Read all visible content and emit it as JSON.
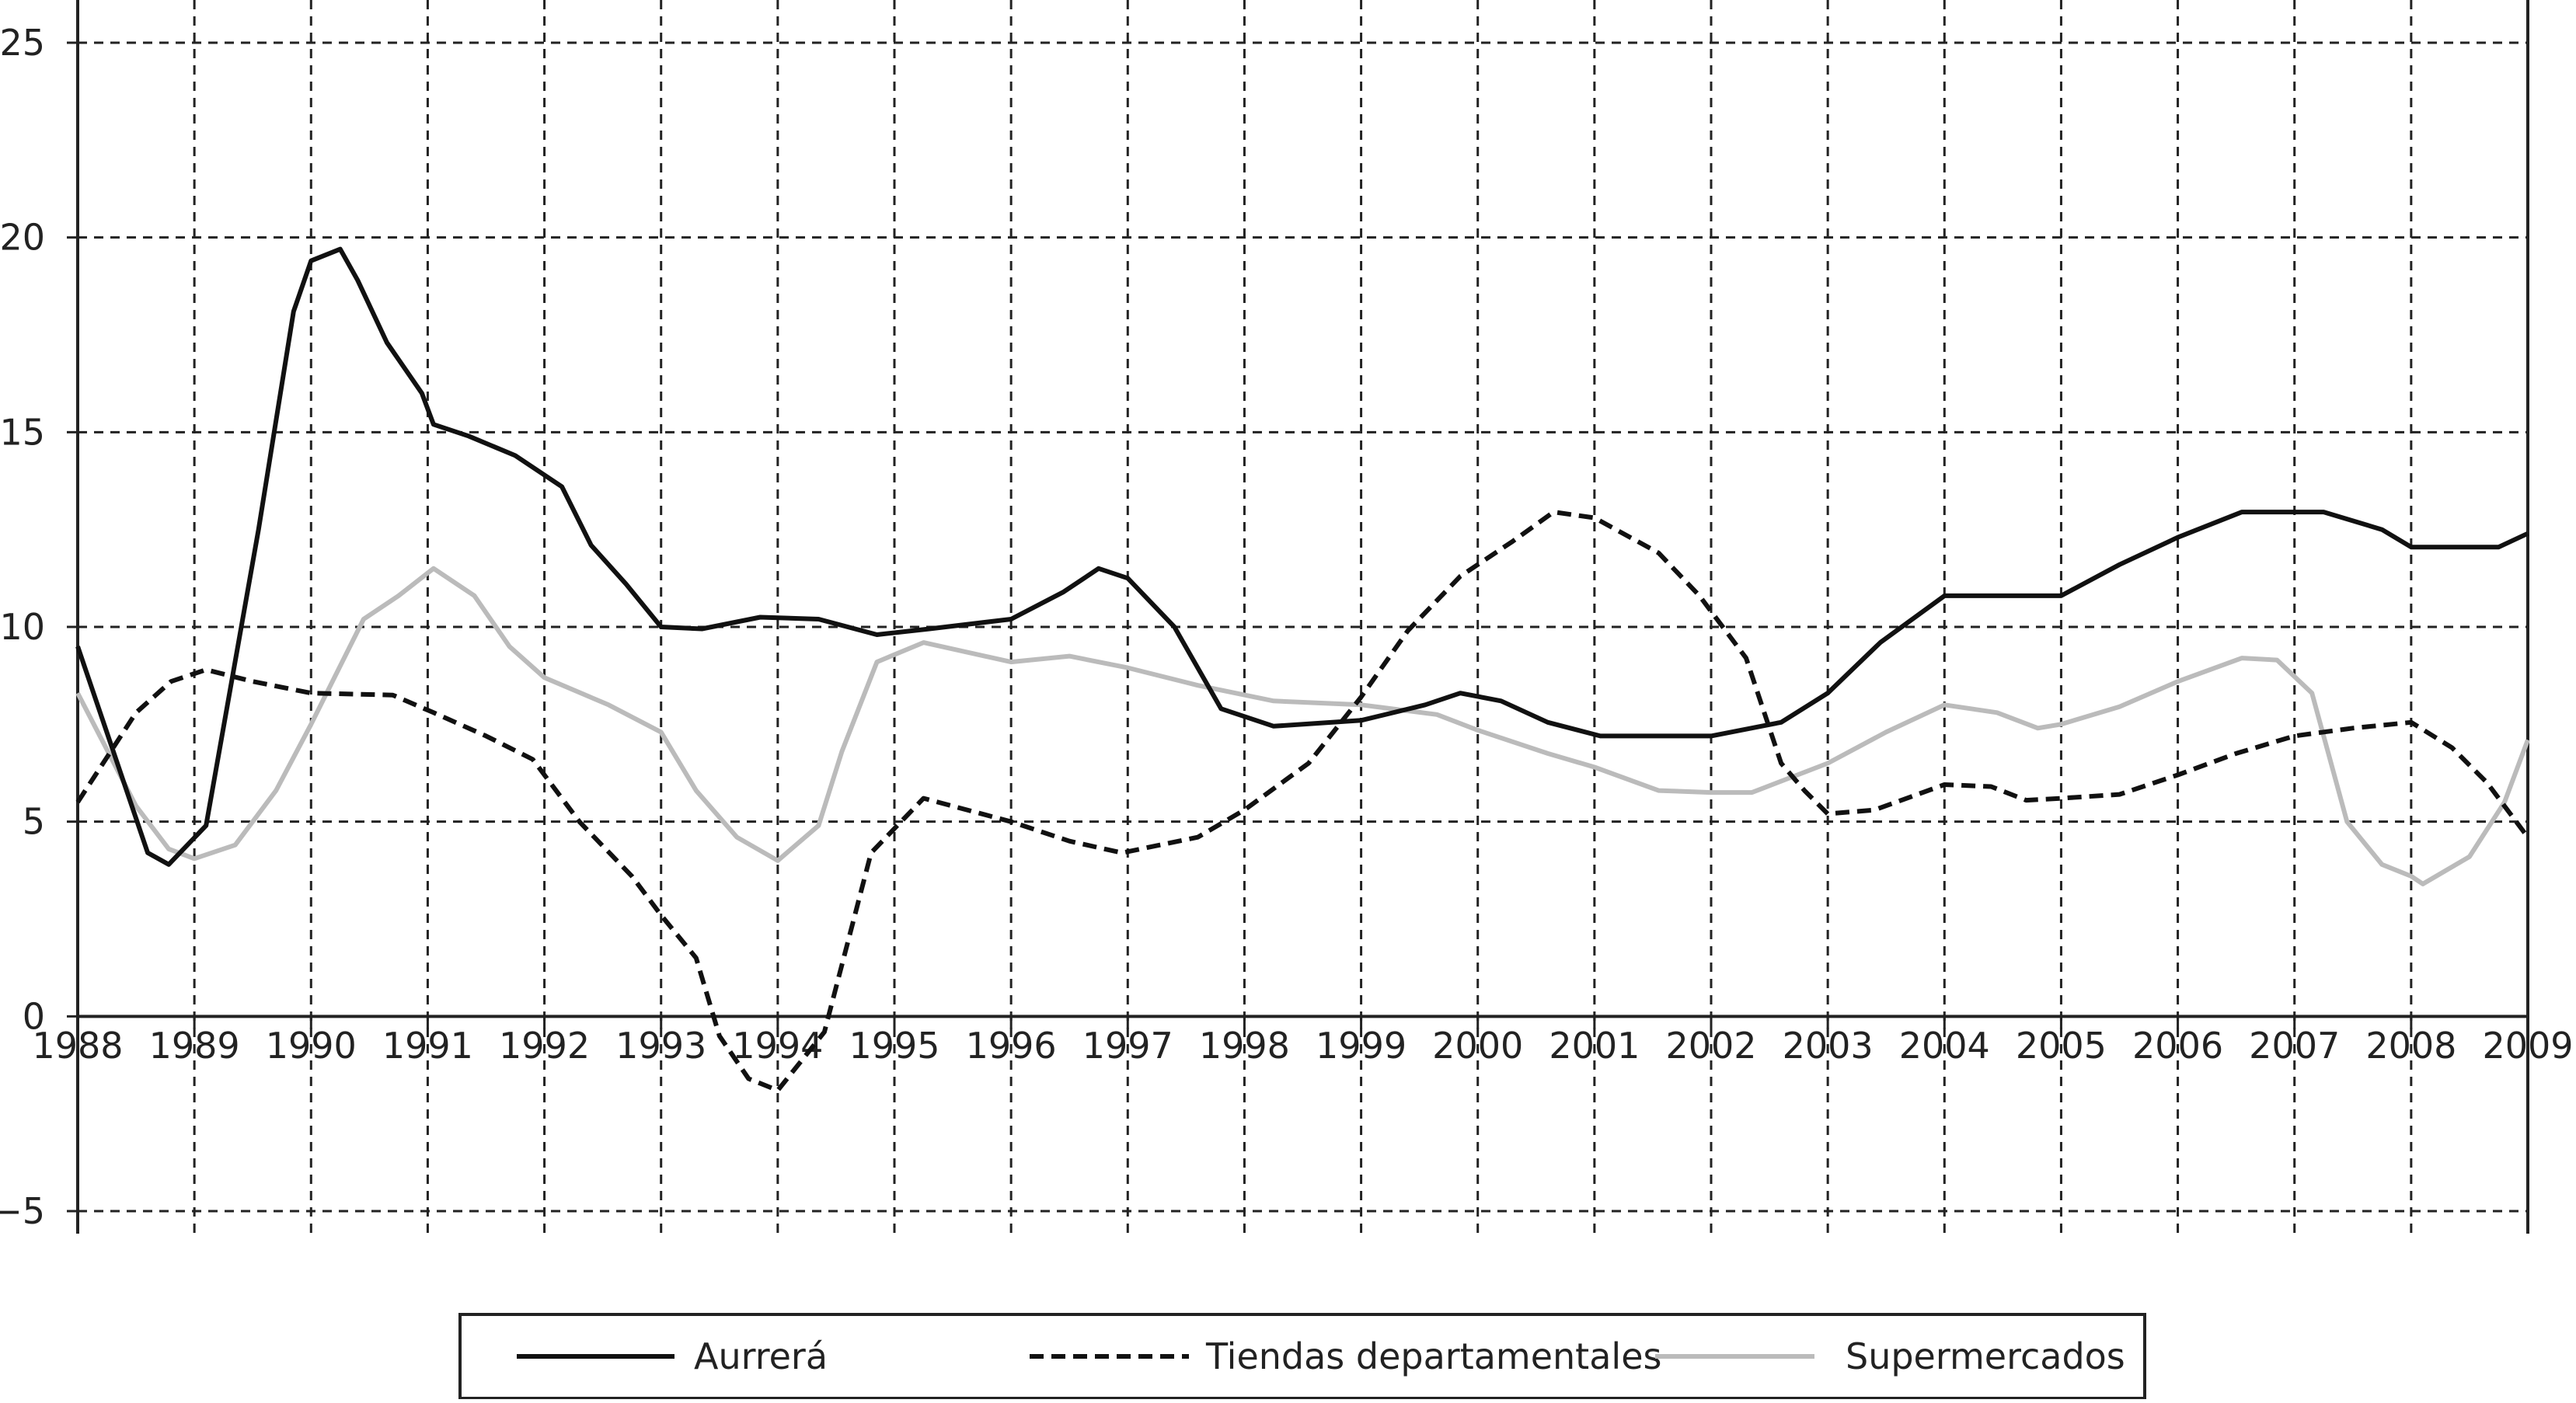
{
  "chart_data": {
    "type": "line",
    "title": "",
    "xlabel": "",
    "ylabel": "",
    "xlim": [
      1988,
      2009
    ],
    "ylim": [
      -5,
      25
    ],
    "x_ticks": [
      "1988",
      "1989",
      "1990",
      "1991",
      "1992",
      "1993",
      "1994",
      "1995",
      "1996",
      "1997",
      "1998",
      "1999",
      "2000",
      "2001",
      "2002",
      "2003",
      "2004",
      "2005",
      "2006",
      "2007",
      "2008",
      "2009"
    ],
    "y_ticks": [
      "25",
      "20",
      "15",
      "10",
      "5",
      "0",
      "−5"
    ],
    "grid": true,
    "legend_position": "bottom-center",
    "series": [
      {
        "name": "Aurrerá",
        "color": "#111111",
        "style": "solid",
        "points": [
          [
            1988.0,
            9.5
          ],
          [
            1988.6,
            4.2
          ],
          [
            1988.78,
            3.9
          ],
          [
            1989.1,
            4.9
          ],
          [
            1989.55,
            12.5
          ],
          [
            1989.85,
            18.1
          ],
          [
            1990.0,
            19.4
          ],
          [
            1990.25,
            19.7
          ],
          [
            1990.4,
            18.9
          ],
          [
            1990.65,
            17.3
          ],
          [
            1990.95,
            16.0
          ],
          [
            1991.05,
            15.2
          ],
          [
            1991.35,
            14.9
          ],
          [
            1991.75,
            14.4
          ],
          [
            1992.15,
            13.6
          ],
          [
            1992.4,
            12.1
          ],
          [
            1992.7,
            11.1
          ],
          [
            1993.0,
            10.0
          ],
          [
            1993.35,
            9.95
          ],
          [
            1993.85,
            10.25
          ],
          [
            1994.35,
            10.2
          ],
          [
            1994.85,
            9.8
          ],
          [
            1995.3,
            9.95
          ],
          [
            1996.0,
            10.2
          ],
          [
            1996.45,
            10.9
          ],
          [
            1996.75,
            11.5
          ],
          [
            1997.0,
            11.25
          ],
          [
            1997.4,
            10.0
          ],
          [
            1997.8,
            7.9
          ],
          [
            1998.25,
            7.45
          ],
          [
            1999.0,
            7.6
          ],
          [
            1999.55,
            8.0
          ],
          [
            1999.85,
            8.3
          ],
          [
            2000.2,
            8.1
          ],
          [
            2000.6,
            7.55
          ],
          [
            2001.05,
            7.2
          ],
          [
            2001.55,
            7.2
          ],
          [
            2002.0,
            7.2
          ],
          [
            2002.6,
            7.55
          ],
          [
            2003.0,
            8.3
          ],
          [
            2003.45,
            9.6
          ],
          [
            2004.0,
            10.8
          ],
          [
            2004.45,
            10.8
          ],
          [
            2005.0,
            10.8
          ],
          [
            2005.5,
            11.6
          ],
          [
            2006.0,
            12.3
          ],
          [
            2006.55,
            12.95
          ],
          [
            2007.0,
            12.95
          ],
          [
            2007.25,
            12.95
          ],
          [
            2007.75,
            12.5
          ],
          [
            2008.0,
            12.05
          ],
          [
            2008.45,
            12.05
          ],
          [
            2008.75,
            12.05
          ],
          [
            2009.0,
            12.4
          ]
        ]
      },
      {
        "name": "Tiendas departamentales",
        "color": "#111111",
        "style": "dashed",
        "points": [
          [
            1988.0,
            5.5
          ],
          [
            1988.5,
            7.8
          ],
          [
            1988.8,
            8.6
          ],
          [
            1989.1,
            8.9
          ],
          [
            1989.5,
            8.6
          ],
          [
            1990.0,
            8.3
          ],
          [
            1990.7,
            8.25
          ],
          [
            1991.05,
            7.8
          ],
          [
            1991.5,
            7.2
          ],
          [
            1991.9,
            6.6
          ],
          [
            1992.3,
            5.0
          ],
          [
            1992.75,
            3.6
          ],
          [
            1993.0,
            2.6
          ],
          [
            1993.3,
            1.5
          ],
          [
            1993.5,
            -0.5
          ],
          [
            1993.75,
            -1.6
          ],
          [
            1994.0,
            -1.9
          ],
          [
            1994.4,
            -0.4
          ],
          [
            1994.8,
            4.2
          ],
          [
            1995.25,
            5.6
          ],
          [
            1996.0,
            5.0
          ],
          [
            1996.5,
            4.5
          ],
          [
            1996.95,
            4.2
          ],
          [
            1997.6,
            4.6
          ],
          [
            1998.0,
            5.3
          ],
          [
            1998.55,
            6.5
          ],
          [
            1999.0,
            8.2
          ],
          [
            1999.4,
            9.9
          ],
          [
            1999.85,
            11.3
          ],
          [
            2000.3,
            12.2
          ],
          [
            2000.65,
            12.95
          ],
          [
            2001.0,
            12.8
          ],
          [
            2001.55,
            11.9
          ],
          [
            2001.9,
            10.8
          ],
          [
            2002.3,
            9.2
          ],
          [
            2002.6,
            6.5
          ],
          [
            2002.8,
            5.8
          ],
          [
            2003.0,
            5.2
          ],
          [
            2003.4,
            5.3
          ],
          [
            2004.0,
            5.95
          ],
          [
            2004.4,
            5.9
          ],
          [
            2004.7,
            5.55
          ],
          [
            2005.0,
            5.6
          ],
          [
            2005.5,
            5.7
          ],
          [
            2006.0,
            6.2
          ],
          [
            2006.5,
            6.75
          ],
          [
            2007.0,
            7.2
          ],
          [
            2007.5,
            7.4
          ],
          [
            2008.0,
            7.55
          ],
          [
            2008.35,
            6.9
          ],
          [
            2008.65,
            6.0
          ],
          [
            2009.0,
            4.6
          ]
        ]
      },
      {
        "name": "Supermercados",
        "color": "#bbbbbb",
        "style": "solid",
        "points": [
          [
            1988.0,
            8.3
          ],
          [
            1988.5,
            5.4
          ],
          [
            1988.78,
            4.3
          ],
          [
            1989.0,
            4.05
          ],
          [
            1989.35,
            4.4
          ],
          [
            1989.7,
            5.8
          ],
          [
            1990.0,
            7.5
          ],
          [
            1990.45,
            10.2
          ],
          [
            1990.75,
            10.8
          ],
          [
            1991.05,
            11.5
          ],
          [
            1991.4,
            10.8
          ],
          [
            1991.7,
            9.5
          ],
          [
            1992.0,
            8.7
          ],
          [
            1992.55,
            8.0
          ],
          [
            1993.0,
            7.3
          ],
          [
            1993.3,
            5.8
          ],
          [
            1993.65,
            4.6
          ],
          [
            1994.0,
            4.0
          ],
          [
            1994.35,
            4.9
          ],
          [
            1994.55,
            6.8
          ],
          [
            1994.85,
            9.1
          ],
          [
            1995.25,
            9.6
          ],
          [
            1996.0,
            9.1
          ],
          [
            1996.5,
            9.25
          ],
          [
            1997.0,
            8.95
          ],
          [
            1997.6,
            8.5
          ],
          [
            1998.25,
            8.1
          ],
          [
            1999.0,
            8.0
          ],
          [
            1999.65,
            7.75
          ],
          [
            2000.0,
            7.35
          ],
          [
            2000.6,
            6.75
          ],
          [
            2001.0,
            6.4
          ],
          [
            2001.55,
            5.8
          ],
          [
            2002.0,
            5.75
          ],
          [
            2002.35,
            5.75
          ],
          [
            2003.0,
            6.5
          ],
          [
            2003.5,
            7.3
          ],
          [
            2004.0,
            8.0
          ],
          [
            2004.45,
            7.8
          ],
          [
            2004.8,
            7.4
          ],
          [
            2005.0,
            7.5
          ],
          [
            2005.5,
            7.95
          ],
          [
            2006.0,
            8.6
          ],
          [
            2006.55,
            9.2
          ],
          [
            2006.85,
            9.15
          ],
          [
            2007.15,
            8.3
          ],
          [
            2007.45,
            5.0
          ],
          [
            2007.75,
            3.9
          ],
          [
            2008.0,
            3.6
          ],
          [
            2008.1,
            3.4
          ],
          [
            2008.5,
            4.1
          ],
          [
            2008.8,
            5.5
          ],
          [
            2009.0,
            7.1
          ]
        ]
      }
    ]
  }
}
